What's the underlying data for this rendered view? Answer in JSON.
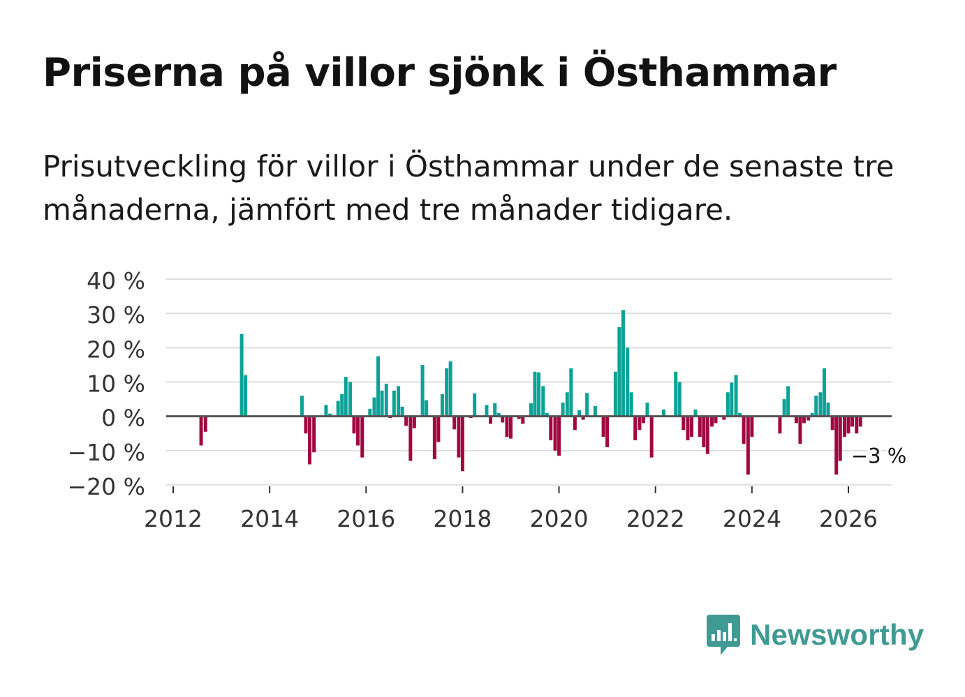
{
  "title": "Priserna på villor sjönk i Östhammar",
  "subtitle": "Prisutveckling för villor i Östhammar under de senaste tre månaderna, jämfört med tre månader tidigare.",
  "brand": {
    "name": "Newsworthy",
    "color": "#3f9a93",
    "icon": "newsworthy-logo-icon"
  },
  "colors": {
    "positive": "#0ca296",
    "negative": "#a0083f",
    "grid": "#dddddd",
    "zero": "#555555"
  },
  "chart_data": {
    "type": "bar",
    "title": "Priserna på villor sjönk i Östhammar",
    "xlabel": "",
    "ylabel": "",
    "ylim": [
      -20,
      40
    ],
    "xlim": [
      2012,
      2026.85
    ],
    "y_ticks": [
      40,
      30,
      20,
      10,
      0,
      -10,
      -20
    ],
    "y_tick_labels": [
      "40 %",
      "30 %",
      "20 %",
      "10 %",
      "0 %",
      "−10 %",
      "−20 %"
    ],
    "x_ticks": [
      2012,
      2014,
      2016,
      2018,
      2020,
      2022,
      2024,
      2026
    ],
    "x_tick_labels": [
      "2012",
      "2014",
      "2016",
      "2018",
      "2020",
      "2022",
      "2024",
      "2026"
    ],
    "annotation": {
      "text": "−3 %",
      "x": 2026.2,
      "y": -3
    },
    "series": [
      {
        "name": "Prisutveckling",
        "points": [
          [
            2012.58,
            -8.5
          ],
          [
            2012.67,
            -4.5
          ],
          [
            2013.42,
            24
          ],
          [
            2013.5,
            12
          ],
          [
            2014.67,
            6
          ],
          [
            2014.75,
            -5
          ],
          [
            2014.83,
            -14
          ],
          [
            2014.92,
            -10.5
          ],
          [
            2015.17,
            3.3
          ],
          [
            2015.25,
            0.8
          ],
          [
            2015.42,
            4.5
          ],
          [
            2015.5,
            6.5
          ],
          [
            2015.58,
            11.5
          ],
          [
            2015.67,
            10
          ],
          [
            2015.75,
            -5
          ],
          [
            2015.83,
            -8.5
          ],
          [
            2015.92,
            -12
          ],
          [
            2016.08,
            2.2
          ],
          [
            2016.17,
            5.5
          ],
          [
            2016.25,
            17.5
          ],
          [
            2016.33,
            7.5
          ],
          [
            2016.42,
            9.5
          ],
          [
            2016.5,
            -0.5
          ],
          [
            2016.58,
            7.5
          ],
          [
            2016.67,
            8.8
          ],
          [
            2016.75,
            2.8
          ],
          [
            2016.83,
            -2.8
          ],
          [
            2016.92,
            -13
          ],
          [
            2017.0,
            -3.5
          ],
          [
            2017.17,
            15
          ],
          [
            2017.25,
            4.7
          ],
          [
            2017.42,
            -12.5
          ],
          [
            2017.5,
            -7.5
          ],
          [
            2017.58,
            6.5
          ],
          [
            2017.67,
            14
          ],
          [
            2017.75,
            16
          ],
          [
            2017.83,
            -3.8
          ],
          [
            2017.92,
            -12
          ],
          [
            2018.0,
            -16
          ],
          [
            2018.17,
            -0.5
          ],
          [
            2018.25,
            6.7
          ],
          [
            2018.5,
            3.3
          ],
          [
            2018.58,
            -2.2
          ],
          [
            2018.67,
            3.8
          ],
          [
            2018.75,
            1
          ],
          [
            2018.83,
            -1.8
          ],
          [
            2018.92,
            -6
          ],
          [
            2019.0,
            -6.5
          ],
          [
            2019.17,
            -0.8
          ],
          [
            2019.25,
            -2.2
          ],
          [
            2019.42,
            3.8
          ],
          [
            2019.5,
            13
          ],
          [
            2019.58,
            12.8
          ],
          [
            2019.67,
            8.8
          ],
          [
            2019.75,
            1
          ],
          [
            2019.83,
            -7
          ],
          [
            2019.92,
            -10
          ],
          [
            2020.0,
            -11.5
          ],
          [
            2020.08,
            4
          ],
          [
            2020.17,
            7
          ],
          [
            2020.25,
            14
          ],
          [
            2020.33,
            -4
          ],
          [
            2020.42,
            1.8
          ],
          [
            2020.5,
            -1
          ],
          [
            2020.58,
            6.8
          ],
          [
            2020.75,
            3
          ],
          [
            2020.92,
            -6
          ],
          [
            2021.0,
            -9
          ],
          [
            2021.17,
            13
          ],
          [
            2021.25,
            26
          ],
          [
            2021.33,
            31
          ],
          [
            2021.42,
            20
          ],
          [
            2021.5,
            7
          ],
          [
            2021.58,
            -7
          ],
          [
            2021.67,
            -4
          ],
          [
            2021.75,
            -2
          ],
          [
            2021.83,
            4
          ],
          [
            2021.92,
            -12
          ],
          [
            2022.17,
            2
          ],
          [
            2022.42,
            13
          ],
          [
            2022.5,
            10
          ],
          [
            2022.58,
            -4
          ],
          [
            2022.67,
            -7
          ],
          [
            2022.75,
            -6
          ],
          [
            2022.83,
            2
          ],
          [
            2022.92,
            -6
          ],
          [
            2023.0,
            -9
          ],
          [
            2023.08,
            -11
          ],
          [
            2023.17,
            -3
          ],
          [
            2023.25,
            -2
          ],
          [
            2023.42,
            -1
          ],
          [
            2023.5,
            7
          ],
          [
            2023.58,
            9.8
          ],
          [
            2023.67,
            12
          ],
          [
            2023.75,
            1
          ],
          [
            2023.83,
            -8
          ],
          [
            2023.92,
            -17
          ],
          [
            2024.0,
            -6
          ],
          [
            2024.58,
            -5
          ],
          [
            2024.67,
            5
          ],
          [
            2024.75,
            8.8
          ],
          [
            2024.92,
            -2
          ],
          [
            2025.0,
            -8
          ],
          [
            2025.08,
            -2
          ],
          [
            2025.17,
            -1.2
          ],
          [
            2025.25,
            1
          ],
          [
            2025.33,
            6
          ],
          [
            2025.42,
            7
          ],
          [
            2025.5,
            14
          ],
          [
            2025.58,
            4
          ],
          [
            2025.67,
            -4
          ],
          [
            2025.75,
            -17
          ],
          [
            2025.83,
            -13
          ],
          [
            2025.92,
            -6
          ],
          [
            2026.0,
            -5
          ],
          [
            2026.08,
            -3
          ],
          [
            2026.17,
            -5
          ],
          [
            2026.25,
            -3
          ]
        ]
      }
    ]
  }
}
